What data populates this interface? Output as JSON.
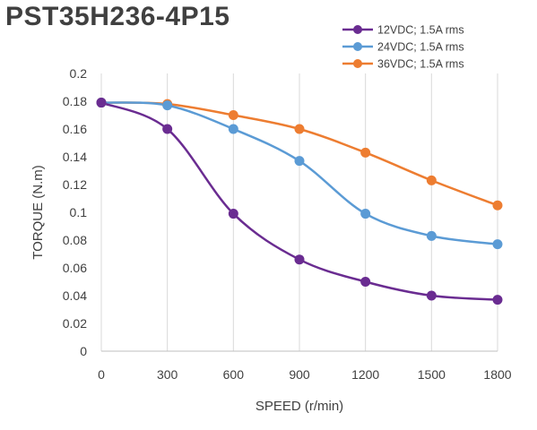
{
  "chart_data": {
    "type": "line",
    "title": "PST35H236-4P15",
    "xlabel": "SPEED (r/min)",
    "ylabel": "TORQUE (N.m)",
    "x": [
      0,
      300,
      600,
      900,
      1200,
      1500,
      1800
    ],
    "xlim": [
      0,
      1800
    ],
    "ylim": [
      0,
      0.2
    ],
    "x_ticks": [
      "0",
      "300",
      "600",
      "900",
      "1200",
      "1500",
      "1800"
    ],
    "y_ticks": [
      "0",
      "0.02",
      "0.04",
      "0.06",
      "0.08",
      "0.1",
      "0.12",
      "0.14",
      "0.16",
      "0.18",
      "0.2"
    ],
    "grid": "vertical",
    "legend_position": "top-right",
    "smooth": true,
    "series": [
      {
        "name": "12VDC; 1.5A rms",
        "color": "#6a2c91",
        "values": [
          0.179,
          0.16,
          0.099,
          0.066,
          0.05,
          0.04,
          0.037
        ]
      },
      {
        "name": "24VDC; 1.5A rms",
        "color": "#5b9bd5",
        "values": [
          0.179,
          0.177,
          0.16,
          0.137,
          0.099,
          0.083,
          0.077
        ]
      },
      {
        "name": "36VDC; 1.5A rms",
        "color": "#ed7d31",
        "values": [
          0.179,
          0.178,
          0.17,
          0.16,
          0.143,
          0.123,
          0.105
        ]
      }
    ]
  }
}
